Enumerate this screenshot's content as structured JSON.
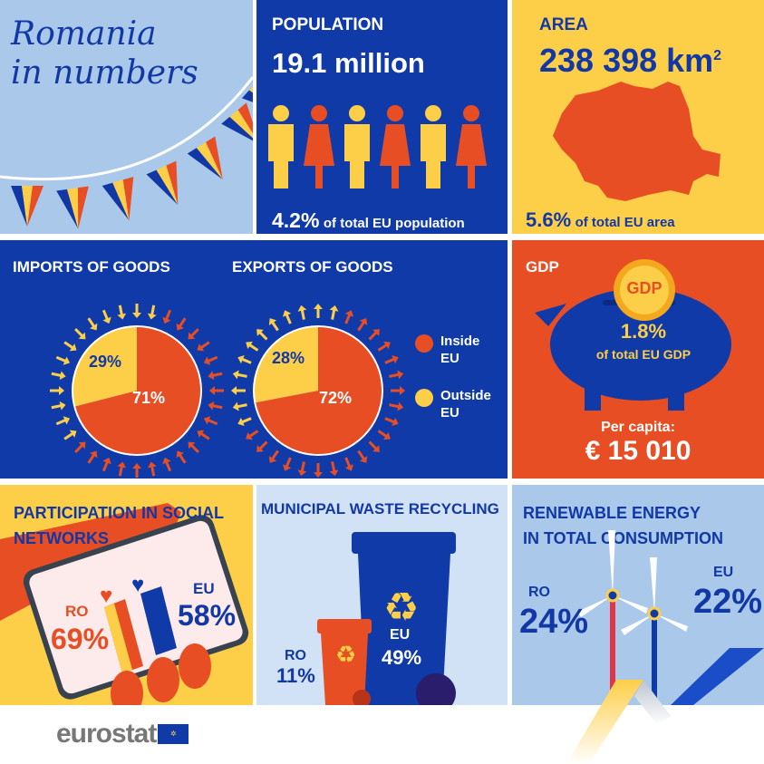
{
  "title": {
    "line1": "Romania",
    "line2": "in numbers"
  },
  "population": {
    "label": "POPULATION",
    "value": "19.1 million",
    "share": "4.2%",
    "share_text": "of total EU population"
  },
  "area": {
    "label": "AREA",
    "value": "238 398 km",
    "sup": "2",
    "share": "5.6%",
    "share_text": "of total EU area"
  },
  "trade": {
    "imports_label": "IMPORTS OF GOODS",
    "exports_label": "EXPORTS OF GOODS",
    "legend": [
      {
        "label1": "Inside",
        "label2": "EU",
        "color": "#e84e24"
      },
      {
        "label1": "Outside",
        "label2": "EU",
        "color": "#fdcf48"
      }
    ]
  },
  "chart_data": [
    {
      "type": "pie",
      "title": "IMPORTS OF GOODS",
      "slices": [
        {
          "name": "Inside EU",
          "value": 71,
          "label": "71%",
          "color": "#e84e24"
        },
        {
          "name": "Outside EU",
          "value": 29,
          "label": "29%",
          "color": "#fdcf48"
        }
      ]
    },
    {
      "type": "pie",
      "title": "EXPORTS OF GOODS",
      "slices": [
        {
          "name": "Inside EU",
          "value": 72,
          "label": "72%",
          "color": "#e84e24"
        },
        {
          "name": "Outside EU",
          "value": 28,
          "label": "28%",
          "color": "#fdcf48"
        }
      ]
    }
  ],
  "gdp": {
    "label": "GDP",
    "coin": "GDP",
    "share": "1.8%",
    "share_text": "of total EU GDP",
    "per_capita_label": "Per capita:",
    "per_capita": "€ 15 010"
  },
  "social": {
    "label1": "PARTICIPATION IN SOCIAL",
    "label2": "NETWORKS",
    "ro_label": "RO",
    "ro": "69%",
    "eu_label": "EU",
    "eu": "58%"
  },
  "waste": {
    "label": "MUNICIPAL WASTE RECYCLING",
    "ro_label": "RO",
    "ro": "11%",
    "eu_label": "EU",
    "eu": "49%"
  },
  "renewable": {
    "label1": "RENEWABLE ENERGY",
    "label2": "IN TOTAL CONSUMPTION",
    "ro_label": "RO",
    "ro": "24%",
    "eu_label": "EU",
    "eu": "22%"
  },
  "footer": {
    "logo": "eurostat"
  },
  "colors": {
    "blue": "#1238a6",
    "yellow": "#fdcf48",
    "orange": "#e84e24",
    "light_blue": "#a9c8ea"
  }
}
